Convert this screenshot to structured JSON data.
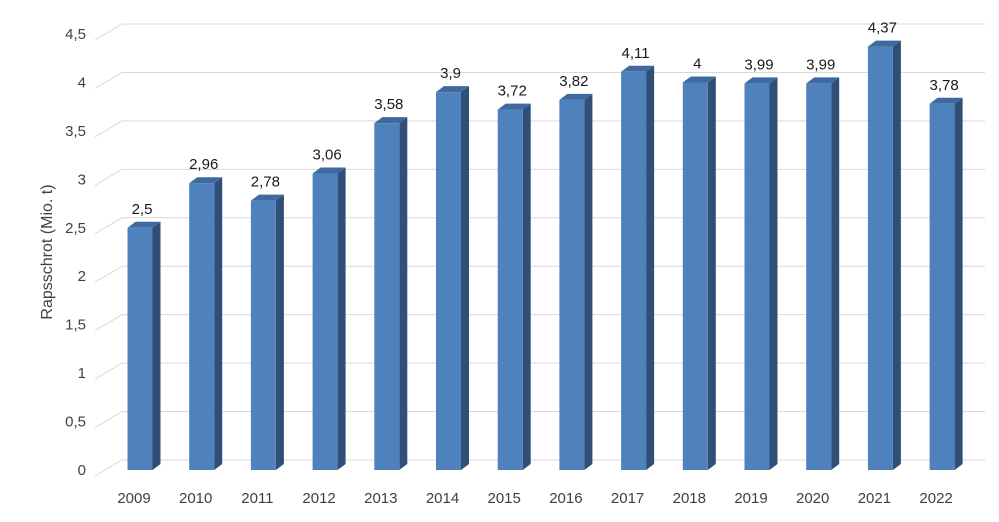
{
  "chart_data": {
    "type": "bar",
    "categories": [
      "2009",
      "2010",
      "2011",
      "2012",
      "2013",
      "2014",
      "2015",
      "2016",
      "2017",
      "2018",
      "2019",
      "2020",
      "2021",
      "2022"
    ],
    "values": [
      2.5,
      2.96,
      2.78,
      3.06,
      3.58,
      3.9,
      3.72,
      3.82,
      4.11,
      4.0,
      3.99,
      3.99,
      4.37,
      3.78
    ],
    "data_labels": [
      "2,5",
      "2,96",
      "2,78",
      "3,06",
      "3,58",
      "3,9",
      "3,72",
      "3,82",
      "4,11",
      "4",
      "3,99",
      "3,99",
      "4,37",
      "3,78"
    ],
    "title": "",
    "xlabel": "",
    "ylabel": "Rapsschrot (Mio. t)",
    "ylim": [
      0,
      4.5
    ],
    "yticks": [
      0,
      0.5,
      1,
      1.5,
      2,
      2.5,
      3,
      3.5,
      4,
      4.5
    ],
    "ytick_labels": [
      "0",
      "0,5",
      "1",
      "1,5",
      "2",
      "2,5",
      "3",
      "3,5",
      "4",
      "4,5"
    ],
    "grid": true,
    "legend": "none",
    "style": "3d-column",
    "colors": {
      "bar_front": "#4f81bd",
      "bar_side": "#2f4f78",
      "bar_top": "#3e6aa0",
      "grid": "#d9d9d9"
    }
  }
}
